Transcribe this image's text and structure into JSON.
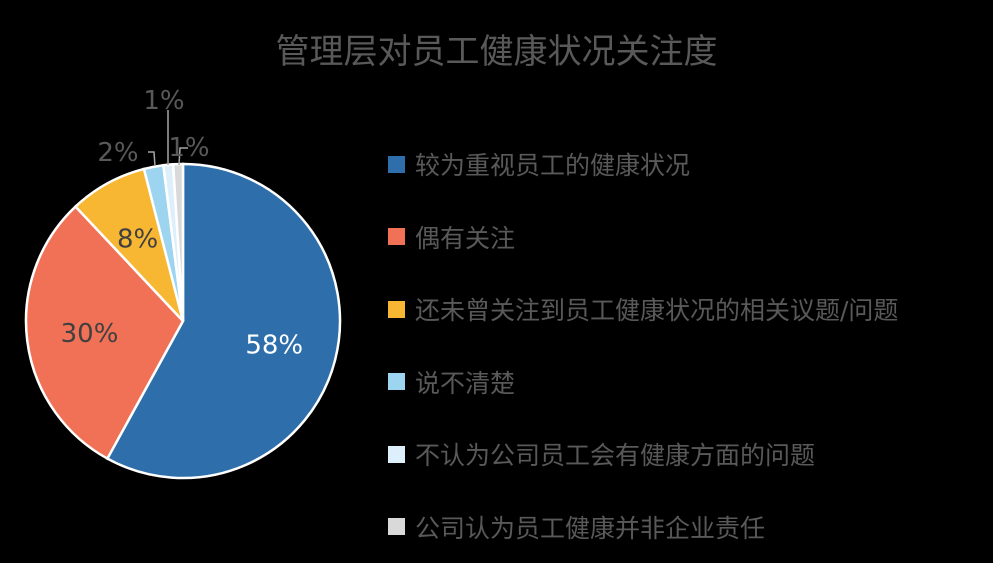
{
  "chart_data": {
    "type": "pie",
    "title": "管理层对员工健康状况关注度",
    "slices": [
      {
        "label": "较为重视员工的健康状况",
        "value": 58,
        "display": "58%",
        "color": "#2E6FAB",
        "label_color": "#FFFFFF"
      },
      {
        "label": "偶有关注",
        "value": 30,
        "display": "30%",
        "color": "#F07156",
        "label_color": "#404040"
      },
      {
        "label": "还未曾关注到员工健康状况的相关议题/问题",
        "value": 8,
        "display": "8%",
        "color": "#F7B733",
        "label_color": "#404040"
      },
      {
        "label": "说不清楚",
        "value": 2,
        "display": "2%",
        "color": "#9DD5F0",
        "label_color": "#595959"
      },
      {
        "label": "不认为公司员工会有健康方面的问题",
        "value": 1,
        "display": "1%",
        "color": "#DDEFFA",
        "label_color": "#595959"
      },
      {
        "label": "公司认为员工健康并非企业责任",
        "value": 1,
        "display": "1%",
        "color": "#D9D9D9",
        "label_color": "#595959"
      }
    ],
    "legend_position": "right",
    "start_angle": "12 o'clock, clockwise"
  }
}
